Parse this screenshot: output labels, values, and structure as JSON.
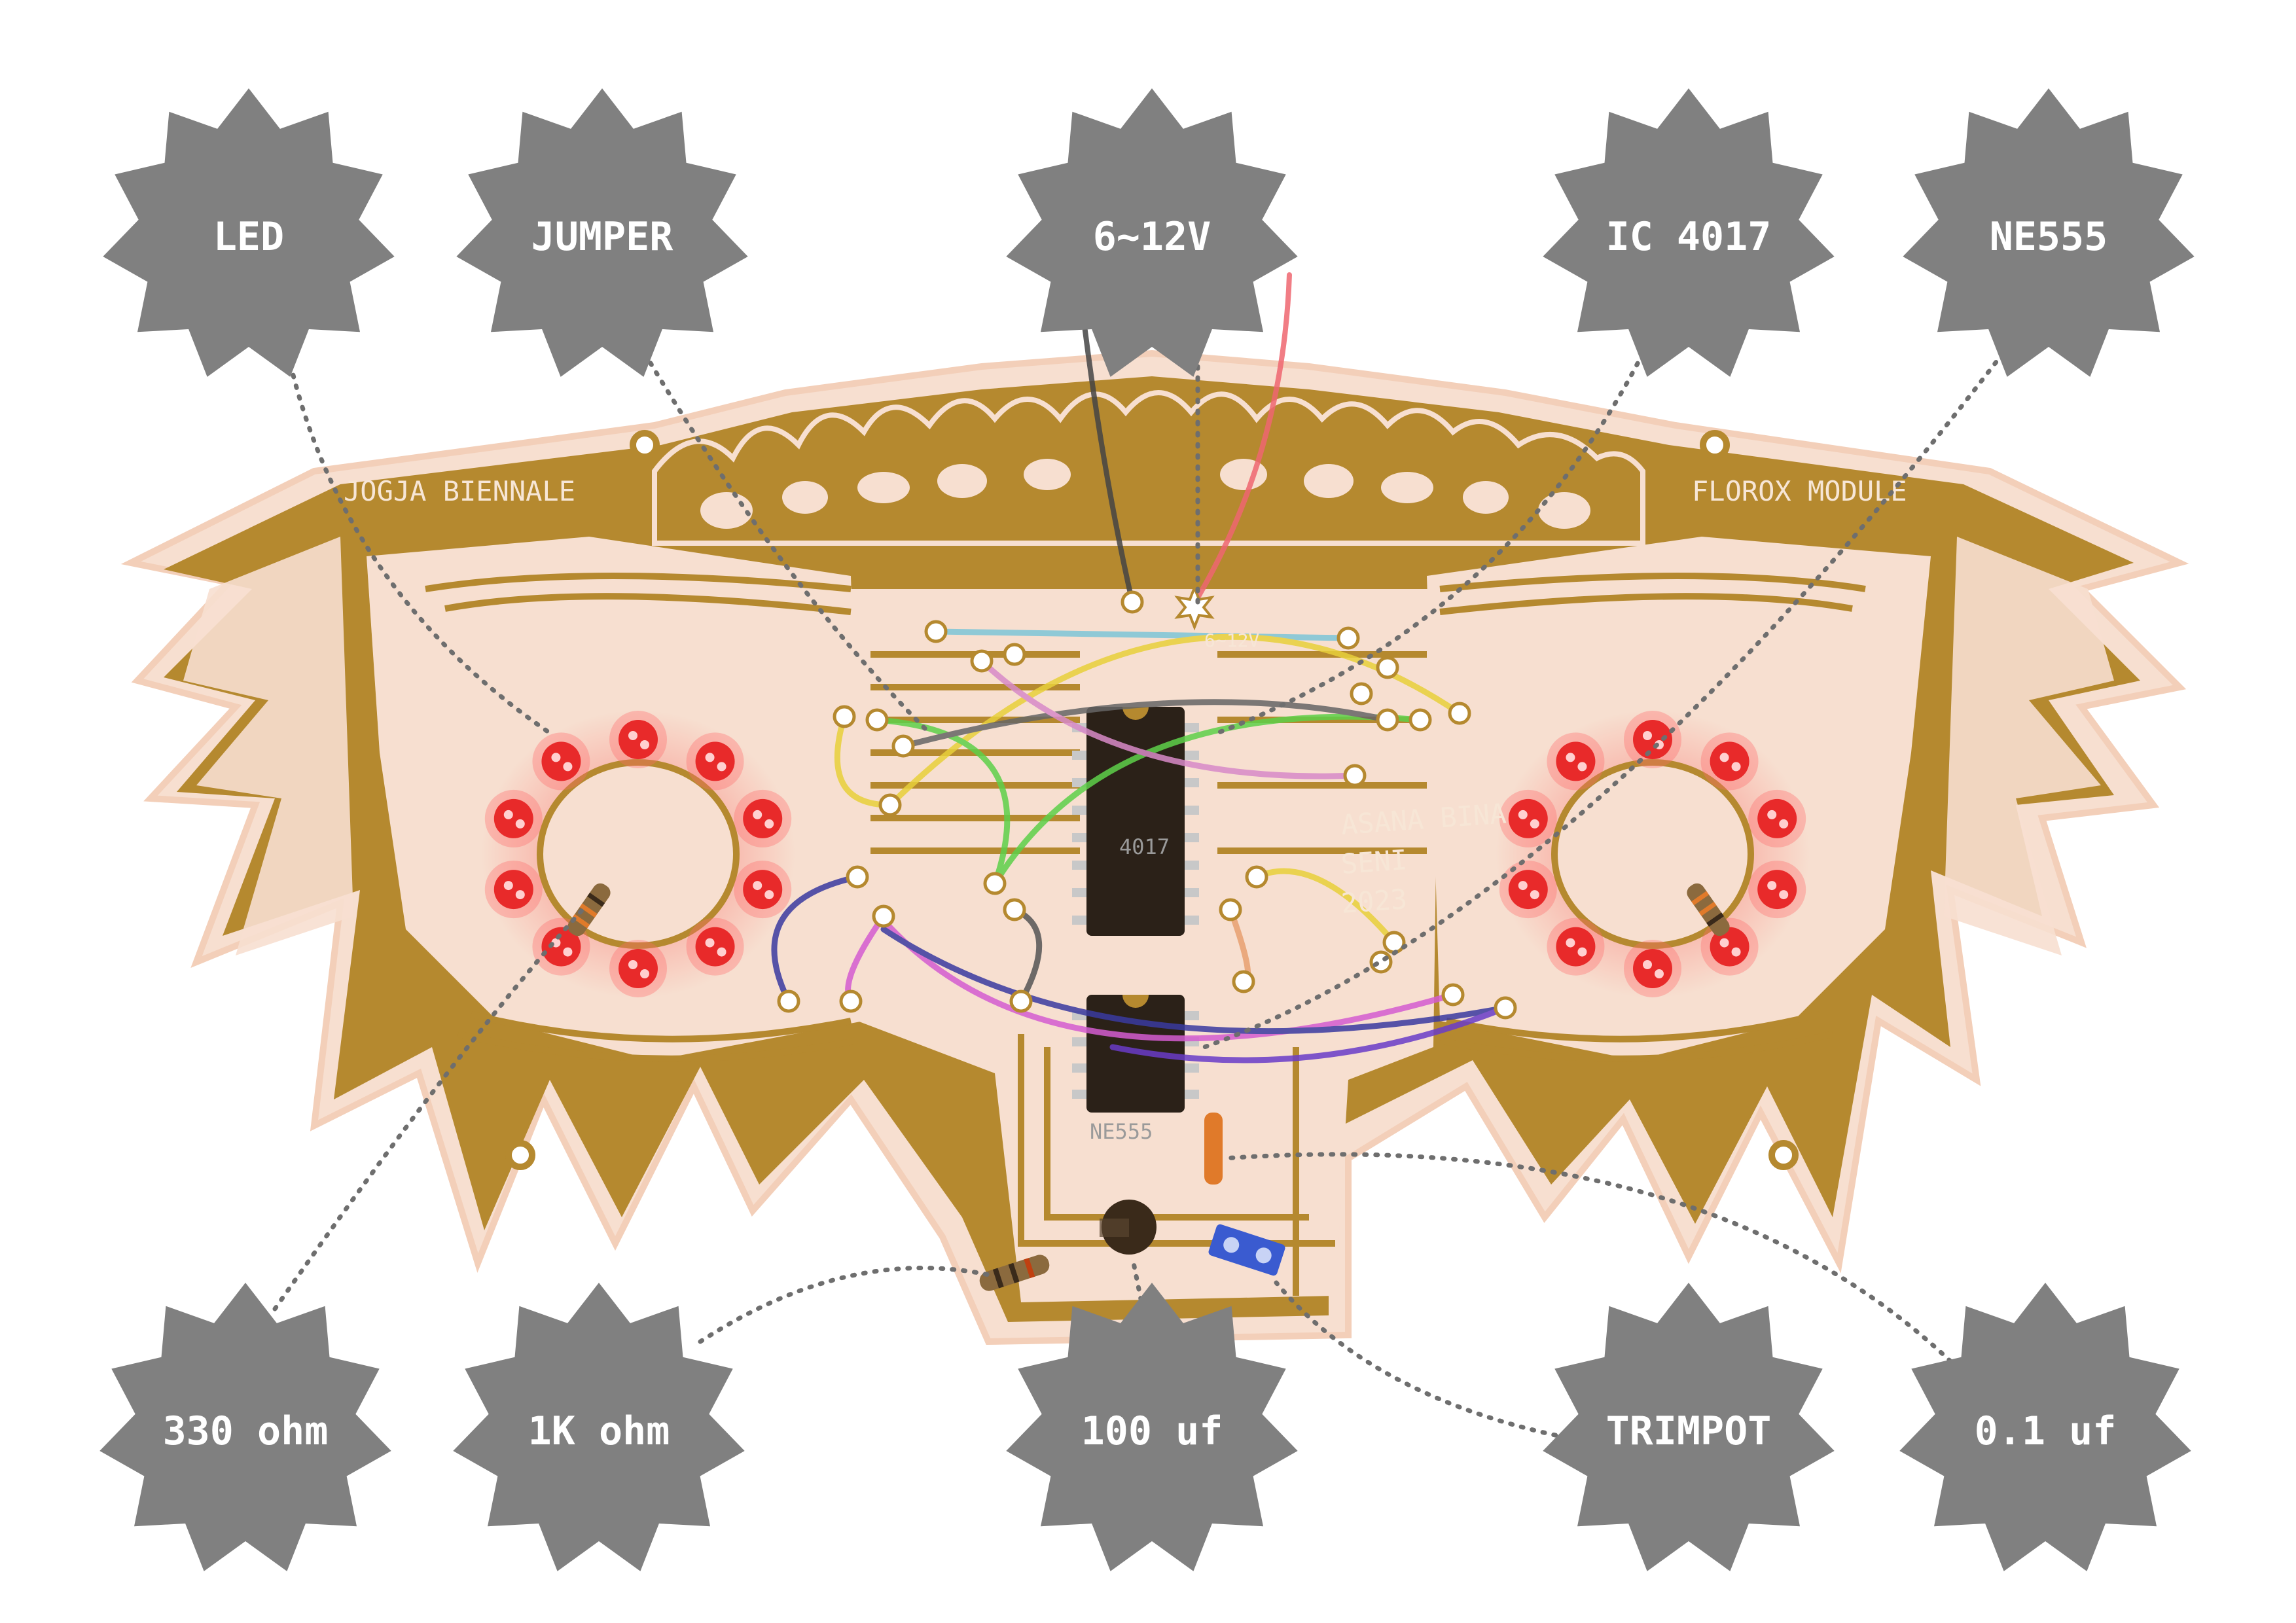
{
  "colors": {
    "background": "#ffffff",
    "badge": "#808080",
    "badge_text": "#ffffff",
    "board_gold": "#b5892f",
    "board_pink": "#f7dfd0",
    "chip": "#2b2118",
    "led_red": "#e82a2a",
    "callout_line": "#6e6e6e"
  },
  "labels": {
    "top": [
      "LED",
      "JUMPER",
      "6~12V",
      "IC 4017",
      "NE555"
    ],
    "bottom": [
      "330 ohm",
      "1K ohm",
      "100 uf",
      "TRIMPOT",
      "0.1 uf"
    ]
  },
  "board": {
    "left_title": "JOGJA BIENNALE",
    "right_title": "FLOROX MODULE",
    "credit_lines": [
      "ASANA BINA",
      "SENI",
      "2023"
    ],
    "power_marking": "6~12V",
    "ic_top_label": "4017",
    "ic_bottom_label": "NE555"
  }
}
